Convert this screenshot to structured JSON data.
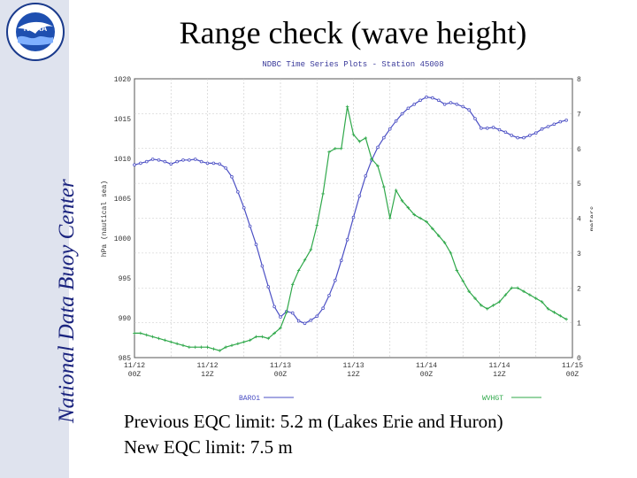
{
  "slide": {
    "title": "Range check (wave height)",
    "sidebar_text": "National Data Buoy Center",
    "logo_text": "NOAA",
    "notes": [
      "Previous EQC limit: 5.2 m (Lakes Erie and Huron)",
      "New EQC limit: 7.5 m"
    ]
  },
  "chart_data": {
    "type": "line",
    "title": "NDBC Time Series Plots - Station 45008",
    "ylabel_left": "hPa (nautical sea)",
    "ylabel_right": "meters",
    "ylim_left": [
      985,
      1020
    ],
    "ylim_right": [
      0,
      8
    ],
    "left_ticks": [
      "1020",
      "1015",
      "1010",
      "1005",
      "1000",
      "995",
      "990",
      "985"
    ],
    "right_ticks": [
      "8",
      "7",
      "6",
      "5",
      "4",
      "3",
      "2",
      "1",
      "0"
    ],
    "x_ticks": [
      {
        "date": "11/12",
        "time": "00Z"
      },
      {
        "date": "11/12",
        "time": "12Z"
      },
      {
        "date": "11/13",
        "time": "00Z"
      },
      {
        "date": "11/13",
        "time": "12Z"
      },
      {
        "date": "11/14",
        "time": "00Z"
      },
      {
        "date": "11/14",
        "time": "12Z"
      },
      {
        "date": "11/15",
        "time": "00Z"
      }
    ],
    "xlim_hours": [
      0,
      72
    ],
    "series": [
      {
        "name": "BARO1",
        "axis": "left",
        "color": "#4b4fc4",
        "x": [
          0,
          1,
          2,
          3,
          4,
          5,
          6,
          7,
          8,
          9,
          10,
          11,
          12,
          13,
          14,
          15,
          16,
          17,
          18,
          19,
          20,
          21,
          22,
          23,
          24,
          25,
          26,
          27,
          28,
          29,
          30,
          31,
          32,
          33,
          34,
          35,
          36,
          37,
          38,
          39,
          40,
          41,
          42,
          43,
          44,
          45,
          46,
          47,
          48,
          49,
          50,
          51,
          52,
          53,
          54,
          55,
          56,
          57,
          58,
          59,
          60,
          61,
          62,
          63,
          64,
          65,
          66,
          67,
          68,
          69,
          70,
          71
        ],
        "values": [
          1009.2,
          1009.4,
          1009.6,
          1009.9,
          1009.8,
          1009.6,
          1009.3,
          1009.6,
          1009.8,
          1009.8,
          1009.9,
          1009.6,
          1009.4,
          1009.4,
          1009.3,
          1008.8,
          1007.7,
          1005.8,
          1003.8,
          1001.5,
          999.2,
          996.5,
          993.9,
          991.4,
          990.1,
          990.8,
          990.6,
          989.6,
          989.3,
          989.7,
          990.2,
          991.2,
          992.8,
          994.7,
          997.2,
          999.8,
          1002.6,
          1005.3,
          1007.8,
          1009.8,
          1011.4,
          1012.6,
          1013.7,
          1014.7,
          1015.6,
          1016.3,
          1016.8,
          1017.3,
          1017.7,
          1017.6,
          1017.3,
          1016.8,
          1017.0,
          1016.8,
          1016.5,
          1016.1,
          1015.0,
          1013.8,
          1013.8,
          1013.9,
          1013.6,
          1013.3,
          1012.9,
          1012.6,
          1012.6,
          1012.9,
          1013.2,
          1013.7,
          1014.0,
          1014.3,
          1014.6,
          1014.8
        ]
      },
      {
        "name": "WVHGT",
        "axis": "right",
        "color": "#2fa84a",
        "x": [
          0,
          1,
          2,
          3,
          4,
          5,
          6,
          7,
          8,
          9,
          10,
          11,
          12,
          13,
          14,
          15,
          16,
          17,
          18,
          19,
          20,
          21,
          22,
          23,
          24,
          25,
          26,
          27,
          28,
          29,
          30,
          31,
          32,
          33,
          34,
          35,
          36,
          37,
          38,
          39,
          40,
          41,
          42,
          43,
          44,
          45,
          46,
          47,
          48,
          49,
          50,
          51,
          52,
          53,
          54,
          55,
          56,
          57,
          58,
          59,
          60,
          61,
          62,
          63,
          64,
          65,
          66,
          67,
          68,
          69,
          70,
          71
        ],
        "values": [
          0.7,
          0.7,
          0.65,
          0.6,
          0.55,
          0.5,
          0.45,
          0.4,
          0.35,
          0.3,
          0.3,
          0.3,
          0.3,
          0.25,
          0.2,
          0.3,
          0.35,
          0.4,
          0.45,
          0.5,
          0.6,
          0.6,
          0.55,
          0.7,
          0.85,
          1.3,
          2.1,
          2.5,
          2.8,
          3.1,
          3.8,
          4.7,
          5.9,
          6.0,
          6.0,
          7.2,
          6.4,
          6.2,
          6.3,
          5.7,
          5.5,
          4.9,
          4.0,
          4.8,
          4.5,
          4.3,
          4.1,
          4.0,
          3.9,
          3.7,
          3.5,
          3.3,
          3.0,
          2.5,
          2.2,
          1.9,
          1.7,
          1.5,
          1.4,
          1.5,
          1.6,
          1.8,
          2.0,
          2.0,
          1.9,
          1.8,
          1.7,
          1.6,
          1.4,
          1.3,
          1.2,
          1.1
        ]
      }
    ],
    "legend": [
      {
        "name": "BARO1",
        "color": "#4b4fc4"
      },
      {
        "name": "WVHGT",
        "color": "#2fa84a"
      }
    ],
    "grid": true
  }
}
